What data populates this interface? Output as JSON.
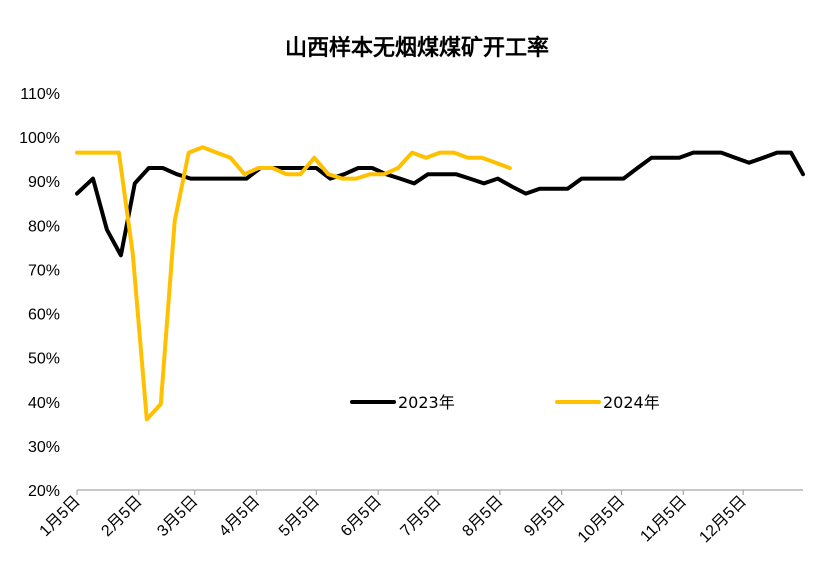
{
  "chart_data": {
    "type": "line",
    "title": "山西样本无烟煤煤矿开工率",
    "xlabel": "",
    "ylabel": "",
    "ylim": [
      20,
      110
    ],
    "y_ticks": [
      "20%",
      "30%",
      "40%",
      "50%",
      "60%",
      "70%",
      "80%",
      "90%",
      "100%",
      "110%"
    ],
    "x_range": [
      "2023-01-05",
      "2024-01-04"
    ],
    "x_ticks": [
      {
        "date": "2023-01-05",
        "label": "1月5日"
      },
      {
        "date": "2023-02-05",
        "label": "2月5日"
      },
      {
        "date": "2023-03-05",
        "label": "3月5日"
      },
      {
        "date": "2023-04-05",
        "label": "4月5日"
      },
      {
        "date": "2023-05-05",
        "label": "5月5日"
      },
      {
        "date": "2023-06-05",
        "label": "6月5日"
      },
      {
        "date": "2023-07-05",
        "label": "7月5日"
      },
      {
        "date": "2023-08-05",
        "label": "8月5日"
      },
      {
        "date": "2023-09-05",
        "label": "9月5日"
      },
      {
        "date": "2023-10-05",
        "label": "10月5日"
      },
      {
        "date": "2023-11-05",
        "label": "11月5日"
      },
      {
        "date": "2023-12-05",
        "label": "12月5日"
      }
    ],
    "grid": false,
    "legend_placement": "inside-center",
    "series": [
      {
        "name": "2023年",
        "color": "#000000",
        "points": [
          [
            "2023-01-05",
            87.2
          ],
          [
            "2023-01-13",
            90.6
          ],
          [
            "2023-01-20",
            79.0
          ],
          [
            "2023-01-27",
            73.2
          ],
          [
            "2023-02-03",
            89.5
          ],
          [
            "2023-02-10",
            93.0
          ],
          [
            "2023-02-17",
            93.0
          ],
          [
            "2023-02-24",
            91.6
          ],
          [
            "2023-03-03",
            90.6
          ],
          [
            "2023-03-10",
            90.6
          ],
          [
            "2023-03-17",
            90.6
          ],
          [
            "2023-03-24",
            90.6
          ],
          [
            "2023-03-31",
            90.6
          ],
          [
            "2023-04-07",
            93.0
          ],
          [
            "2023-04-14",
            93.0
          ],
          [
            "2023-04-21",
            93.0
          ],
          [
            "2023-04-28",
            93.0
          ],
          [
            "2023-05-05",
            93.0
          ],
          [
            "2023-05-12",
            90.6
          ],
          [
            "2023-05-19",
            91.6
          ],
          [
            "2023-05-26",
            93.0
          ],
          [
            "2023-06-02",
            93.0
          ],
          [
            "2023-06-09",
            91.6
          ],
          [
            "2023-06-16",
            90.6
          ],
          [
            "2023-06-23",
            89.5
          ],
          [
            "2023-06-30",
            91.6
          ],
          [
            "2023-07-07",
            91.6
          ],
          [
            "2023-07-14",
            91.6
          ],
          [
            "2023-07-21",
            90.6
          ],
          [
            "2023-07-28",
            89.5
          ],
          [
            "2023-08-04",
            90.6
          ],
          [
            "2023-08-11",
            88.8
          ],
          [
            "2023-08-18",
            87.2
          ],
          [
            "2023-08-25",
            88.3
          ],
          [
            "2023-09-01",
            88.3
          ],
          [
            "2023-09-08",
            88.3
          ],
          [
            "2023-09-15",
            90.6
          ],
          [
            "2023-09-22",
            90.6
          ],
          [
            "2023-09-29",
            90.6
          ],
          [
            "2023-10-06",
            90.6
          ],
          [
            "2023-10-13",
            93.0
          ],
          [
            "2023-10-20",
            95.3
          ],
          [
            "2023-10-27",
            95.3
          ],
          [
            "2023-11-03",
            95.3
          ],
          [
            "2023-11-10",
            96.5
          ],
          [
            "2023-11-17",
            96.5
          ],
          [
            "2023-11-24",
            96.5
          ],
          [
            "2023-12-01",
            95.3
          ],
          [
            "2023-12-08",
            94.2
          ],
          [
            "2023-12-15",
            95.3
          ],
          [
            "2023-12-22",
            96.5
          ],
          [
            "2023-12-29",
            96.5
          ],
          [
            "2024-01-04",
            91.6
          ]
        ]
      },
      {
        "name": "2024年",
        "color": "#FFC000",
        "points": [
          [
            "2023-01-05",
            96.5
          ],
          [
            "2023-01-12",
            96.5
          ],
          [
            "2023-01-19",
            96.5
          ],
          [
            "2023-01-26",
            96.5
          ],
          [
            "2023-02-02",
            73.5
          ],
          [
            "2023-02-09",
            36.0
          ],
          [
            "2023-02-16",
            39.5
          ],
          [
            "2023-02-23",
            81.0
          ],
          [
            "2023-03-02",
            96.5
          ],
          [
            "2023-03-09",
            97.7
          ],
          [
            "2023-03-16",
            96.5
          ],
          [
            "2023-03-23",
            95.3
          ],
          [
            "2023-03-30",
            91.6
          ],
          [
            "2023-04-06",
            93.0
          ],
          [
            "2023-04-13",
            93.0
          ],
          [
            "2023-04-20",
            91.6
          ],
          [
            "2023-04-27",
            91.6
          ],
          [
            "2023-05-04",
            95.3
          ],
          [
            "2023-05-11",
            91.6
          ],
          [
            "2023-05-18",
            90.6
          ],
          [
            "2023-05-25",
            90.6
          ],
          [
            "2023-06-01",
            91.6
          ],
          [
            "2023-06-08",
            91.6
          ],
          [
            "2023-06-15",
            93.0
          ],
          [
            "2023-06-22",
            96.5
          ],
          [
            "2023-06-29",
            95.3
          ],
          [
            "2023-07-06",
            96.5
          ],
          [
            "2023-07-13",
            96.5
          ],
          [
            "2023-07-20",
            95.3
          ],
          [
            "2023-07-27",
            95.3
          ],
          [
            "2023-08-03",
            94.2
          ],
          [
            "2023-08-10",
            93.0
          ]
        ]
      }
    ]
  }
}
